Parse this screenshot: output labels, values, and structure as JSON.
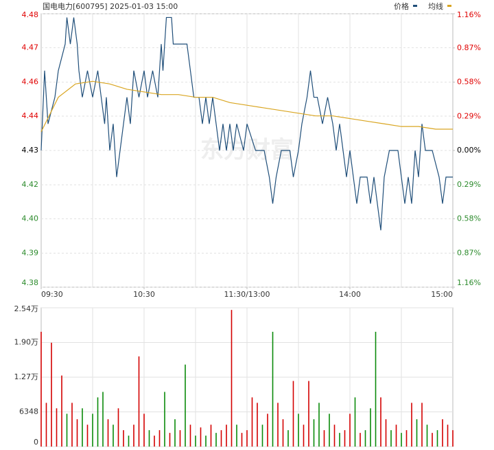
{
  "chart_data": [
    {
      "type": "line",
      "title": "国电电力[600795] 2025-01-03 15:00",
      "watermark": "东方财富",
      "xlim": [
        0,
        240
      ],
      "xticks": [
        {
          "value": 0,
          "label": "09:30"
        },
        {
          "value": 60,
          "label": "10:30"
        },
        {
          "value": 120,
          "label": "11:30/13:00"
        },
        {
          "value": 180,
          "label": "14:00"
        },
        {
          "value": 240,
          "label": "15:00"
        }
      ],
      "x_gridlines": [
        30,
        60,
        90,
        120,
        150,
        180,
        210
      ],
      "ylim": [
        4.3786,
        4.4814
      ],
      "yticks": [
        {
          "value": 4.4814,
          "label": "4.48"
        },
        {
          "value": 4.4686,
          "label": "4.47"
        },
        {
          "value": 4.4557,
          "label": "4.46"
        },
        {
          "value": 4.4429,
          "label": "4.44"
        },
        {
          "value": 4.43,
          "label": "4.43"
        },
        {
          "value": 4.4171,
          "label": "4.42"
        },
        {
          "value": 4.4043,
          "label": "4.40"
        },
        {
          "value": 4.3914,
          "label": "4.39"
        },
        {
          "value": 4.3786,
          "label": "4.38"
        }
      ],
      "y2lim": [
        -1.16,
        1.16
      ],
      "y2ticks": [
        {
          "value": 1.16,
          "label": "1.16%"
        },
        {
          "value": 0.87,
          "label": "0.87%"
        },
        {
          "value": 0.58,
          "label": "0.58%"
        },
        {
          "value": 0.29,
          "label": "0.29%"
        },
        {
          "value": 0,
          "label": "0.00%"
        },
        {
          "value": -0.29,
          "label": "0.29%"
        },
        {
          "value": -0.58,
          "label": "0.58%"
        },
        {
          "value": -0.87,
          "label": "0.87%"
        },
        {
          "value": -1.16,
          "label": "1.16%"
        }
      ],
      "grid": true,
      "legend": "top-right",
      "series": [
        {
          "name": "价格",
          "color": "#1f4e79",
          "x": [
            0,
            2,
            4,
            8,
            10,
            14,
            15,
            17,
            19,
            21,
            22,
            24,
            27,
            30,
            33,
            35,
            37,
            38,
            40,
            42,
            44,
            46,
            48,
            50,
            52,
            54,
            57,
            60,
            62,
            65,
            68,
            70,
            71,
            73,
            76,
            77,
            80,
            85,
            87,
            89,
            92,
            94,
            96,
            98,
            100,
            102,
            104,
            106,
            108,
            110,
            112,
            114,
            118,
            120,
            125,
            130,
            133,
            135,
            137,
            140,
            145,
            147,
            150,
            152,
            155,
            157,
            159,
            161,
            164,
            167,
            170,
            172,
            174,
            176,
            178,
            180,
            182,
            184,
            186,
            190,
            192,
            194,
            196,
            198,
            200,
            203,
            208,
            210,
            212,
            214,
            216,
            218,
            220,
            222,
            224,
            228,
            232,
            234,
            236,
            240
          ],
          "values": [
            4.43,
            4.46,
            4.44,
            4.45,
            4.46,
            4.47,
            4.48,
            4.47,
            4.48,
            4.47,
            4.46,
            4.45,
            4.46,
            4.45,
            4.46,
            4.45,
            4.44,
            4.45,
            4.43,
            4.44,
            4.42,
            4.43,
            4.44,
            4.45,
            4.44,
            4.46,
            4.45,
            4.46,
            4.45,
            4.46,
            4.45,
            4.47,
            4.46,
            4.48,
            4.48,
            4.47,
            4.47,
            4.47,
            4.46,
            4.45,
            4.45,
            4.44,
            4.45,
            4.44,
            4.45,
            4.44,
            4.43,
            4.44,
            4.43,
            4.44,
            4.43,
            4.44,
            4.43,
            4.44,
            4.43,
            4.43,
            4.42,
            4.41,
            4.42,
            4.43,
            4.43,
            4.42,
            4.43,
            4.44,
            4.45,
            4.46,
            4.45,
            4.45,
            4.44,
            4.45,
            4.44,
            4.43,
            4.44,
            4.43,
            4.42,
            4.43,
            4.42,
            4.41,
            4.42,
            4.42,
            4.41,
            4.42,
            4.41,
            4.4,
            4.42,
            4.43,
            4.43,
            4.42,
            4.41,
            4.42,
            4.41,
            4.43,
            4.42,
            4.44,
            4.43,
            4.43,
            4.42,
            4.41,
            4.42,
            4.42
          ]
        },
        {
          "name": "均线",
          "color": "#d9a520",
          "x": [
            0,
            10,
            20,
            30,
            40,
            50,
            60,
            70,
            80,
            90,
            100,
            110,
            120,
            130,
            140,
            150,
            160,
            170,
            180,
            190,
            200,
            210,
            220,
            230,
            240
          ],
          "values": [
            4.437,
            4.45,
            4.455,
            4.456,
            4.455,
            4.453,
            4.452,
            4.451,
            4.451,
            4.45,
            4.45,
            4.448,
            4.447,
            4.446,
            4.445,
            4.444,
            4.443,
            4.443,
            4.442,
            4.441,
            4.44,
            4.439,
            4.439,
            4.438,
            4.438
          ]
        }
      ]
    },
    {
      "type": "bar",
      "xlim": [
        0,
        240
      ],
      "x_gridlines": [
        30,
        60,
        90,
        120,
        150,
        180,
        210
      ],
      "ylim": [
        0,
        25392
      ],
      "yticks": [
        {
          "value": 25392,
          "label": "2.54万"
        },
        {
          "value": 19044,
          "label": "1.90万"
        },
        {
          "value": 12696,
          "label": "1.27万"
        },
        6348,
        0
      ],
      "x": [
        0,
        3,
        6,
        9,
        12,
        15,
        18,
        21,
        24,
        27,
        30,
        33,
        36,
        39,
        42,
        45,
        48,
        51,
        54,
        57,
        60,
        63,
        66,
        69,
        72,
        75,
        78,
        81,
        84,
        87,
        90,
        93,
        96,
        99,
        102,
        105,
        108,
        111,
        114,
        117,
        120,
        123,
        126,
        129,
        132,
        135,
        138,
        141,
        144,
        147,
        150,
        153,
        156,
        159,
        162,
        165,
        168,
        171,
        174,
        177,
        180,
        183,
        186,
        189,
        192,
        195,
        198,
        201,
        204,
        207,
        210,
        213,
        216,
        219,
        222,
        225,
        228,
        231,
        234,
        237,
        240
      ],
      "values": [
        21000,
        8000,
        19000,
        7000,
        13000,
        6000,
        8000,
        5000,
        7000,
        4000,
        6000,
        9000,
        10000,
        5000,
        4000,
        7000,
        3000,
        2000,
        4000,
        16500,
        6000,
        3000,
        2000,
        3000,
        10000,
        2500,
        5000,
        3000,
        15000,
        4000,
        2000,
        3500,
        2000,
        4000,
        2500,
        3000,
        4000,
        25000,
        4000,
        2500,
        3000,
        9000,
        8000,
        4000,
        6000,
        21000,
        8000,
        5000,
        3000,
        12000,
        6000,
        4000,
        12000,
        5000,
        8000,
        3000,
        6000,
        4000,
        2500,
        3000,
        6000,
        9000,
        2500,
        3000,
        7000,
        21000,
        9000,
        5000,
        3000,
        4000,
        2500,
        3000,
        8000,
        5000,
        8000,
        4000,
        2500,
        3000,
        5000,
        4000,
        3000
      ],
      "colors": [
        "#d40000",
        "#d40000",
        "#d40000",
        "#d40000",
        "#d40000",
        "#0a8a0a",
        "#d40000",
        "#d40000",
        "#0a8a0a",
        "#d40000",
        "#0a8a0a",
        "#0a8a0a",
        "#0a8a0a",
        "#d40000",
        "#0a8a0a",
        "#d40000",
        "#d40000",
        "#0a8a0a",
        "#d40000",
        "#d40000",
        "#d40000",
        "#0a8a0a",
        "#d40000",
        "#d40000",
        "#0a8a0a",
        "#d40000",
        "#0a8a0a",
        "#d40000",
        "#0a8a0a",
        "#d40000",
        "#0a8a0a",
        "#d40000",
        "#0a8a0a",
        "#d40000",
        "#0a8a0a",
        "#d40000",
        "#d40000",
        "#d40000",
        "#0a8a0a",
        "#d40000",
        "#d40000",
        "#d40000",
        "#d40000",
        "#0a8a0a",
        "#d40000",
        "#0a8a0a",
        "#d40000",
        "#d40000",
        "#0a8a0a",
        "#d40000",
        "#0a8a0a",
        "#d40000",
        "#d40000",
        "#0a8a0a",
        "#0a8a0a",
        "#d40000",
        "#0a8a0a",
        "#d40000",
        "#0a8a0a",
        "#d40000",
        "#d40000",
        "#0a8a0a",
        "#d40000",
        "#0a8a0a",
        "#0a8a0a",
        "#0a8a0a",
        "#d40000",
        "#d40000",
        "#0a8a0a",
        "#d40000",
        "#0a8a0a",
        "#d40000",
        "#d40000",
        "#0a8a0a",
        "#d40000",
        "#0a8a0a",
        "#d40000",
        "#0a8a0a",
        "#d40000",
        "#d40000",
        "#d40000"
      ]
    }
  ]
}
